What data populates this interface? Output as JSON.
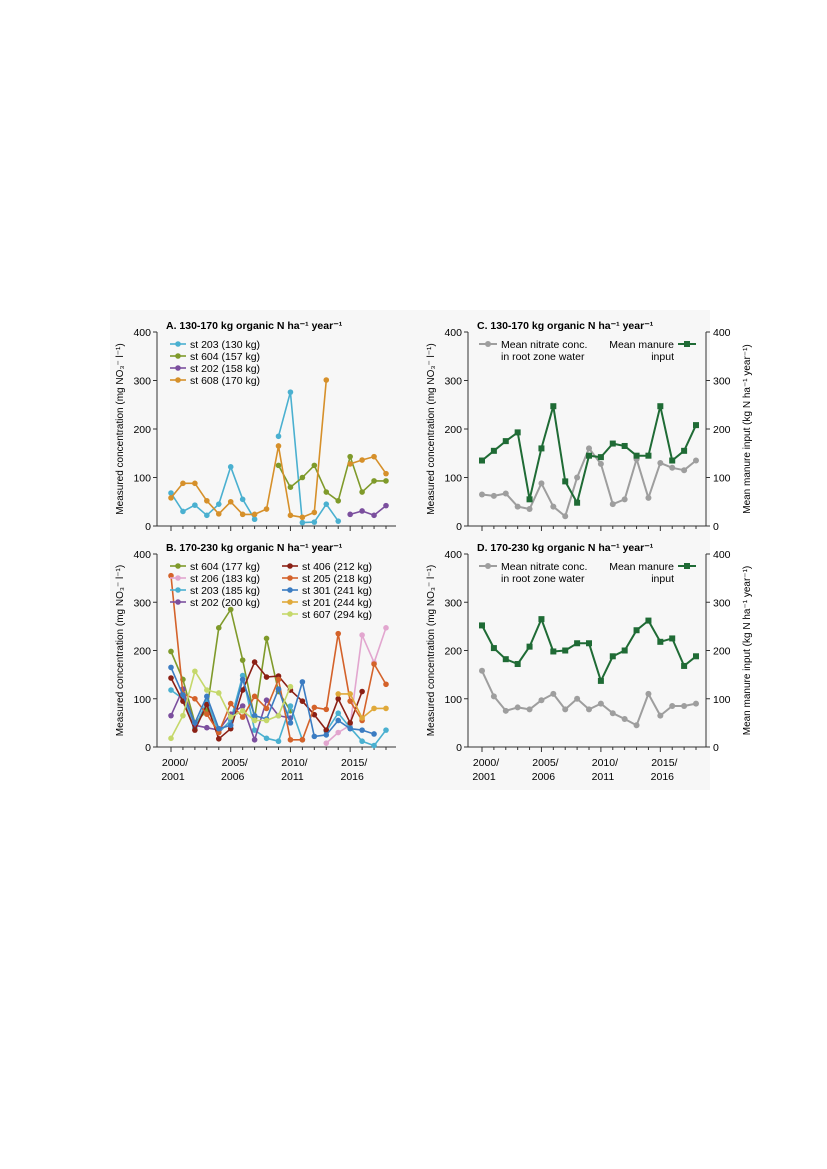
{
  "x_tick_labels": [
    {
      "line1": "2000/",
      "line2": "2001"
    },
    {
      "line1": "2005/",
      "line2": "2006"
    },
    {
      "line1": "2010/",
      "line2": "2011"
    },
    {
      "line1": "2015/",
      "line2": "2016"
    }
  ],
  "chart_data": [
    {
      "type": "line",
      "panel": "A",
      "title": "A. 130-170 kg organic N ha⁻¹ year⁻¹",
      "ylabel": "Measured concentration (mg NO₃⁻ l⁻¹)",
      "xlabel": "",
      "ylim": [
        0,
        400
      ],
      "yticks": [
        0,
        100,
        200,
        300,
        400
      ],
      "x": [
        "2000/2001",
        "2001/2002",
        "2002/2003",
        "2003/2004",
        "2004/2005",
        "2005/2006",
        "2006/2007",
        "2007/2008",
        "2008/2009",
        "2009/2010",
        "2010/2011",
        "2011/2012",
        "2012/2013",
        "2013/2014",
        "2014/2015",
        "2015/2016",
        "2016/2017",
        "2017/2018",
        "2018/2019"
      ],
      "legend_position": "top-left",
      "series": [
        {
          "name": "st 203 (130 kg)",
          "color": "#4ab0d0",
          "values": [
            68,
            30,
            43,
            22,
            45,
            122,
            55,
            14,
            null,
            185,
            276,
            7,
            8,
            45,
            10,
            null,
            null,
            null,
            null
          ]
        },
        {
          "name": "st 604 (157 kg)",
          "color": "#7f9a2a",
          "values": [
            null,
            null,
            null,
            null,
            null,
            null,
            null,
            null,
            null,
            125,
            80,
            100,
            125,
            70,
            52,
            143,
            70,
            93,
            93
          ]
        },
        {
          "name": "st 202 (158 kg)",
          "color": "#7b4f9e",
          "values": [
            null,
            null,
            null,
            null,
            null,
            null,
            null,
            null,
            null,
            null,
            null,
            null,
            null,
            null,
            null,
            24,
            31,
            22,
            42
          ]
        },
        {
          "name": "st 608 (170 kg)",
          "color": "#d6902a",
          "values": [
            58,
            88,
            88,
            52,
            25,
            50,
            24,
            24,
            35,
            165,
            22,
            18,
            28,
            301,
            null,
            128,
            136,
            143,
            108
          ]
        }
      ]
    },
    {
      "type": "line",
      "panel": "B",
      "title": "B. 170-230 kg organic N ha⁻¹ year⁻¹",
      "ylabel": "Measured concentration (mg NO₃⁻ l⁻¹)",
      "xlabel": "",
      "ylim": [
        0,
        400
      ],
      "yticks": [
        0,
        100,
        200,
        300,
        400
      ],
      "x": [
        "2000/2001",
        "2001/2002",
        "2002/2003",
        "2003/2004",
        "2004/2005",
        "2005/2006",
        "2006/2007",
        "2007/2008",
        "2008/2009",
        "2009/2010",
        "2010/2011",
        "2011/2012",
        "2012/2013",
        "2013/2014",
        "2014/2015",
        "2015/2016",
        "2016/2017",
        "2017/2018",
        "2018/2019"
      ],
      "legend_position": "top",
      "series": [
        {
          "name": "st 604 (177 kg)",
          "color": "#7f9a2a",
          "values": [
            198,
            140,
            50,
            75,
            247,
            285,
            180,
            60,
            225,
            115,
            75,
            null,
            null,
            null,
            null,
            null,
            null,
            null,
            null
          ]
        },
        {
          "name": "st 206 (183 kg)",
          "color": "#e2a6cf",
          "values": [
            null,
            null,
            null,
            null,
            null,
            null,
            null,
            null,
            null,
            null,
            null,
            null,
            null,
            8,
            30,
            45,
            232,
            175,
            247
          ]
        },
        {
          "name": "st 203 (185 kg)",
          "color": "#4ab0d0",
          "values": [
            118,
            100,
            40,
            95,
            30,
            55,
            148,
            35,
            18,
            12,
            85,
            15,
            null,
            33,
            70,
            40,
            12,
            3,
            35
          ]
        },
        {
          "name": "st 202 (200 kg)",
          "color": "#7b4f9e",
          "values": [
            65,
            120,
            45,
            40,
            35,
            68,
            85,
            15,
            97,
            65,
            60,
            null,
            null,
            null,
            null,
            null,
            null,
            null,
            null
          ]
        },
        {
          "name": "st 406 (212 kg)",
          "color": "#8b2015",
          "values": [
            143,
            95,
            35,
            88,
            17,
            38,
            118,
            176,
            145,
            147,
            118,
            95,
            67,
            35,
            100,
            50,
            115,
            null,
            null
          ]
        },
        {
          "name": "st 205 (218 kg)",
          "color": "#d4622a",
          "values": [
            355,
            110,
            100,
            68,
            30,
            90,
            62,
            105,
            80,
            140,
            15,
            15,
            82,
            78,
            235,
            95,
            55,
            172,
            130
          ]
        },
        {
          "name": "st 301 (241 kg)",
          "color": "#3b7cc2",
          "values": [
            165,
            108,
            50,
            105,
            38,
            45,
            140,
            65,
            58,
            120,
            50,
            135,
            22,
            25,
            55,
            38,
            35,
            27,
            null
          ]
        },
        {
          "name": "st 201 (244 kg)",
          "color": "#e0a93a",
          "values": [
            null,
            null,
            null,
            null,
            null,
            null,
            null,
            null,
            null,
            null,
            null,
            null,
            null,
            null,
            110,
            110,
            60,
            80,
            80
          ]
        },
        {
          "name": "st 607 (294 kg)",
          "color": "#c5d86a",
          "values": [
            18,
            65,
            157,
            118,
            112,
            62,
            75,
            55,
            55,
            65,
            125,
            null,
            null,
            null,
            null,
            null,
            null,
            null,
            null
          ]
        }
      ]
    },
    {
      "type": "line",
      "panel": "C",
      "title": "C. 130-170 kg organic N ha⁻¹ year⁻¹",
      "ylabel": "Measured concentration (mg NO₃⁻ l⁻¹)",
      "y2label": "Mean manure input (kg N ha⁻¹ year⁻¹)",
      "xlabel": "",
      "ylim": [
        0,
        400
      ],
      "y2lim": [
        0,
        400
      ],
      "yticks": [
        0,
        100,
        200,
        300,
        400
      ],
      "x": [
        "2000/2001",
        "2001/2002",
        "2002/2003",
        "2003/2004",
        "2004/2005",
        "2005/2006",
        "2006/2007",
        "2007/2008",
        "2008/2009",
        "2009/2010",
        "2010/2011",
        "2011/2012",
        "2012/2013",
        "2013/2014",
        "2014/2015",
        "2015/2016",
        "2016/2017",
        "2017/2018",
        "2018/2019"
      ],
      "legend_position": "top",
      "legend": [
        {
          "line1": "Mean nitrate conc.",
          "line2": "in root zone water"
        },
        {
          "line1": "Mean manure",
          "line2": "input"
        }
      ],
      "series": [
        {
          "name": "Mean nitrate conc. in root zone water",
          "color": "#9e9e9e",
          "marker": "circle",
          "axis": "left",
          "values": [
            65,
            62,
            67,
            40,
            35,
            88,
            40,
            20,
            100,
            160,
            128,
            45,
            55,
            138,
            58,
            130,
            120,
            115,
            135
          ]
        },
        {
          "name": "Mean manure input",
          "color": "#1f6b35",
          "marker": "square",
          "axis": "right",
          "values": [
            135,
            155,
            175,
            193,
            55,
            160,
            247,
            92,
            48,
            145,
            142,
            170,
            165,
            145,
            145,
            247,
            135,
            155,
            208
          ]
        }
      ]
    },
    {
      "type": "line",
      "panel": "D",
      "title": "D. 170-230 kg organic N ha⁻¹ year⁻¹",
      "ylabel": "Measured concentration (mg NO₃⁻ l⁻¹)",
      "y2label": "Mean manure input (kg N ha⁻¹ year⁻¹)",
      "xlabel": "",
      "ylim": [
        0,
        400
      ],
      "y2lim": [
        0,
        400
      ],
      "yticks": [
        0,
        100,
        200,
        300,
        400
      ],
      "x": [
        "2000/2001",
        "2001/2002",
        "2002/2003",
        "2003/2004",
        "2004/2005",
        "2005/2006",
        "2006/2007",
        "2007/2008",
        "2008/2009",
        "2009/2010",
        "2010/2011",
        "2011/2012",
        "2012/2013",
        "2013/2014",
        "2014/2015",
        "2015/2016",
        "2016/2017",
        "2017/2018",
        "2018/2019"
      ],
      "legend_position": "top",
      "legend": [
        {
          "line1": "Mean nitrate conc.",
          "line2": "in root zone water"
        },
        {
          "line1": "Mean manure",
          "line2": "input"
        }
      ],
      "series": [
        {
          "name": "Mean nitrate conc. in root zone water",
          "color": "#9e9e9e",
          "marker": "circle",
          "axis": "left",
          "values": [
            158,
            105,
            75,
            82,
            78,
            97,
            110,
            78,
            100,
            78,
            90,
            70,
            58,
            45,
            110,
            65,
            85,
            85,
            90
          ]
        },
        {
          "name": "Mean manure input",
          "color": "#1f6b35",
          "marker": "square",
          "axis": "right",
          "values": [
            252,
            205,
            182,
            172,
            208,
            265,
            198,
            200,
            215,
            215,
            137,
            188,
            200,
            242,
            262,
            218,
            225,
            168,
            188
          ]
        }
      ]
    }
  ]
}
